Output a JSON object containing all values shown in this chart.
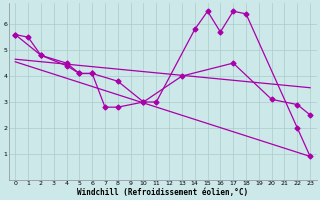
{
  "bg_color": "#cce8e8",
  "line_color": "#aa00aa",
  "grid_color": "#aacccc",
  "xlabel": "Windchill (Refroidissement éolien,°C)",
  "xlim": [
    -0.5,
    23.5
  ],
  "ylim": [
    0,
    6.8
  ],
  "xticks": [
    0,
    1,
    2,
    3,
    4,
    5,
    6,
    7,
    8,
    9,
    10,
    11,
    12,
    13,
    14,
    15,
    16,
    17,
    18,
    19,
    20,
    21,
    22,
    23
  ],
  "yticks": [
    1,
    2,
    3,
    4,
    5,
    6
  ],
  "line1_x": [
    0,
    1,
    2,
    4,
    5,
    6,
    7,
    8,
    10,
    11,
    14,
    15,
    16,
    17,
    18,
    22,
    23
  ],
  "line1_y": [
    5.6,
    5.5,
    4.8,
    4.5,
    4.1,
    4.1,
    2.8,
    2.8,
    3.0,
    3.0,
    5.8,
    6.5,
    5.7,
    6.5,
    6.4,
    2.0,
    0.9
  ],
  "line2_x": [
    0,
    2,
    4,
    5,
    6,
    8,
    10,
    13,
    17,
    20,
    22,
    23
  ],
  "line2_y": [
    5.6,
    4.8,
    4.4,
    4.1,
    4.1,
    3.8,
    3.0,
    4.0,
    4.5,
    3.1,
    2.9,
    2.5
  ],
  "line3_x": [
    0,
    23
  ],
  "line3_y": [
    4.65,
    3.55
  ],
  "line4_x": [
    0,
    23
  ],
  "line4_y": [
    4.55,
    0.9
  ],
  "markersize": 2.5,
  "linewidth": 0.9
}
